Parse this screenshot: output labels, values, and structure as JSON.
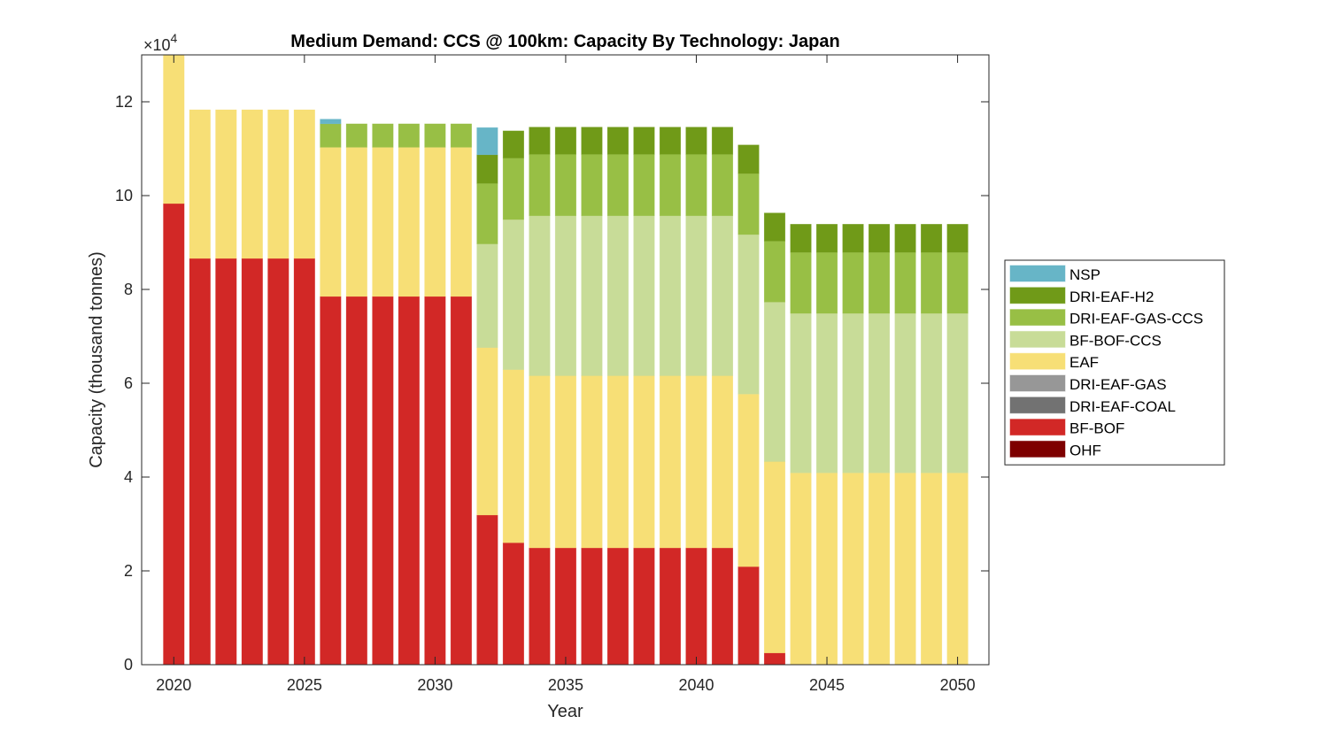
{
  "chart_data": {
    "type": "bar",
    "stacked": true,
    "title": "Medium Demand: CCS @ 100km: Capacity By Technology: Japan",
    "xlabel": "Year",
    "ylabel": "Capacity (thousand tonnes)",
    "y_exponent_label": "×10",
    "y_exponent_power": "4",
    "xlim": [
      2018.77,
      2051.2
    ],
    "ylim": [
      0,
      130000
    ],
    "xticks": [
      2020,
      2025,
      2030,
      2035,
      2040,
      2045,
      2050
    ],
    "xtick_labels": [
      "2020",
      "2025",
      "2030",
      "2035",
      "2040",
      "2045",
      "2050"
    ],
    "yticks": [
      0,
      20000,
      40000,
      60000,
      80000,
      100000,
      120000
    ],
    "ytick_labels": [
      "0",
      "2",
      "4",
      "6",
      "8",
      "10",
      "12"
    ],
    "grid": false,
    "legend_position": "outside-right",
    "categories": [
      2020,
      2021,
      2022,
      2023,
      2024,
      2025,
      2026,
      2027,
      2028,
      2029,
      2030,
      2031,
      2032,
      2033,
      2034,
      2035,
      2036,
      2037,
      2038,
      2039,
      2040,
      2041,
      2042,
      2043,
      2044,
      2045,
      2046,
      2047,
      2048,
      2049,
      2050
    ],
    "series": [
      {
        "name": "OHF",
        "color": "#7e0000",
        "values": [
          0,
          0,
          0,
          0,
          0,
          0,
          0,
          0,
          0,
          0,
          0,
          0,
          0,
          0,
          0,
          0,
          0,
          0,
          0,
          0,
          0,
          0,
          0,
          0,
          0,
          0,
          0,
          0,
          0,
          0,
          0
        ]
      },
      {
        "name": "BF-BOF",
        "color": "#d22826",
        "values": [
          98300,
          86600,
          86600,
          86600,
          86600,
          86600,
          78500,
          78500,
          78500,
          78500,
          78500,
          78500,
          31900,
          26000,
          24900,
          24900,
          24900,
          24900,
          24900,
          24900,
          24900,
          24900,
          20900,
          2500,
          0,
          0,
          0,
          0,
          0,
          0,
          0
        ]
      },
      {
        "name": "DRI-EAF-COAL",
        "color": "#727272",
        "values": [
          0,
          0,
          0,
          0,
          0,
          0,
          0,
          0,
          0,
          0,
          0,
          0,
          0,
          0,
          0,
          0,
          0,
          0,
          0,
          0,
          0,
          0,
          0,
          0,
          0,
          0,
          0,
          0,
          0,
          0,
          0
        ]
      },
      {
        "name": "DRI-EAF-GAS",
        "color": "#979797",
        "values": [
          0,
          0,
          0,
          0,
          0,
          0,
          0,
          0,
          0,
          0,
          0,
          0,
          0,
          0,
          0,
          0,
          0,
          0,
          0,
          0,
          0,
          0,
          0,
          0,
          0,
          0,
          0,
          0,
          0,
          0,
          0
        ]
      },
      {
        "name": "EAF",
        "color": "#f7df76",
        "values": [
          33000,
          31700,
          31700,
          31700,
          31700,
          31700,
          31800,
          31800,
          31800,
          31800,
          31800,
          31800,
          35700,
          36900,
          36700,
          36700,
          36700,
          36700,
          36700,
          36700,
          36700,
          36700,
          36800,
          40800,
          40900,
          40900,
          40900,
          40900,
          40900,
          40900,
          40900
        ]
      },
      {
        "name": "BF-BOF-CCS",
        "color": "#c8dc98",
        "values": [
          0,
          0,
          0,
          0,
          0,
          0,
          0,
          0,
          0,
          0,
          0,
          0,
          22100,
          32000,
          34100,
          34100,
          34100,
          34100,
          34100,
          34100,
          34100,
          34100,
          34000,
          34000,
          34000,
          34000,
          34000,
          34000,
          34000,
          34000,
          34000
        ]
      },
      {
        "name": "DRI-EAF-GAS-CCS",
        "color": "#98bf45",
        "values": [
          0,
          0,
          0,
          0,
          0,
          0,
          5000,
          5000,
          5000,
          5000,
          5000,
          5000,
          12900,
          13100,
          13100,
          13100,
          13100,
          13100,
          13100,
          13100,
          13100,
          13100,
          13000,
          13000,
          13000,
          13000,
          13000,
          13000,
          13000,
          13000,
          13000
        ]
      },
      {
        "name": "DRI-EAF-H2",
        "color": "#709a18",
        "values": [
          0,
          0,
          0,
          0,
          0,
          0,
          0,
          0,
          0,
          0,
          0,
          0,
          6100,
          5800,
          5800,
          5800,
          5800,
          5800,
          5800,
          5800,
          5800,
          5800,
          6100,
          6000,
          6000,
          6000,
          6000,
          6000,
          6000,
          6000,
          6000
        ]
      },
      {
        "name": "NSP",
        "color": "#67b5c7",
        "values": [
          0,
          0,
          0,
          0,
          0,
          0,
          1000,
          0,
          0,
          0,
          0,
          0,
          5800,
          0,
          0,
          0,
          0,
          0,
          0,
          0,
          0,
          0,
          0,
          0,
          0,
          0,
          0,
          0,
          0,
          0,
          0
        ]
      }
    ],
    "legend_order": [
      "NSP",
      "DRI-EAF-H2",
      "DRI-EAF-GAS-CCS",
      "BF-BOF-CCS",
      "EAF",
      "DRI-EAF-GAS",
      "DRI-EAF-COAL",
      "BF-BOF",
      "OHF"
    ],
    "bar_width": 0.8
  }
}
